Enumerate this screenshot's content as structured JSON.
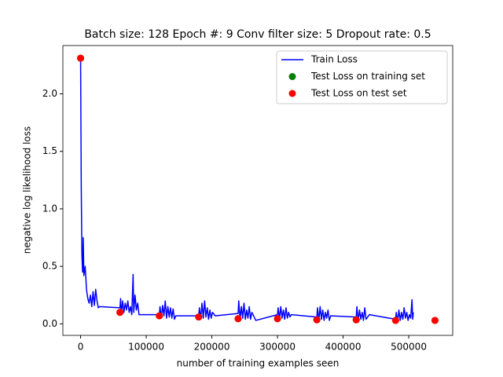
{
  "chart_data": {
    "type": "line",
    "title": "Batch size: 128 Epoch #: 9 Conv filter size: 5 Dropout rate: 0.5",
    "xlabel": "number of training examples seen",
    "ylabel": "negative log likelihood loss",
    "xlim": [
      -27000,
      567000
    ],
    "ylim": [
      -0.1,
      2.42
    ],
    "xticks": [
      0,
      100000,
      200000,
      300000,
      400000,
      500000
    ],
    "yticks": [
      {
        "value": 0,
        "label": "0.0"
      },
      {
        "value": 0.5,
        "label": "0.5"
      },
      {
        "value": 1,
        "label": "1.0"
      },
      {
        "value": 1.5,
        "label": "1.5"
      },
      {
        "value": 2,
        "label": "2.0"
      }
    ],
    "legend": "upper right",
    "series": [
      {
        "name": "Train Loss",
        "type": "line",
        "color": "#0000ff",
        "x": [
          0,
          1000,
          2000,
          3000,
          4000,
          5000,
          7000,
          9000,
          11000,
          13000,
          15000,
          17000,
          19000,
          21000,
          23000,
          25000,
          27000,
          29000,
          60000,
          61000,
          62000,
          64000,
          66000,
          68000,
          70000,
          72000,
          74000,
          76000,
          78000,
          80000,
          81000,
          83000,
          85000,
          87000,
          89000,
          120000,
          121000,
          123000,
          125000,
          127000,
          129000,
          131000,
          133000,
          135000,
          137000,
          139000,
          141000,
          143000,
          145000,
          180000,
          181000,
          183000,
          185000,
          187000,
          189000,
          191000,
          193000,
          195000,
          197000,
          199000,
          201000,
          205000,
          240000,
          241000,
          243000,
          245000,
          247000,
          249000,
          251000,
          253000,
          255000,
          257000,
          259000,
          261000,
          267000,
          300000,
          301000,
          303000,
          305000,
          307000,
          309000,
          311000,
          313000,
          315000,
          317000,
          319000,
          321000,
          360000,
          361000,
          363000,
          365000,
          367000,
          369000,
          371000,
          373000,
          375000,
          377000,
          379000,
          381000,
          420000,
          421000,
          423000,
          425000,
          427000,
          429000,
          431000,
          433000,
          435000,
          440000,
          480000,
          481000,
          483000,
          485000,
          487000,
          489000,
          491000,
          493000,
          495000,
          497000,
          499000,
          501000,
          503000,
          505000,
          506000,
          507000
        ],
        "values": [
          2.31,
          1.2,
          0.6,
          0.45,
          0.75,
          0.42,
          0.5,
          0.3,
          0.22,
          0.18,
          0.25,
          0.15,
          0.28,
          0.16,
          0.3,
          0.2,
          0.14,
          0.15,
          0.14,
          0.22,
          0.08,
          0.2,
          0.1,
          0.18,
          0.12,
          0.2,
          0.1,
          0.15,
          0.08,
          0.43,
          0.1,
          0.25,
          0.12,
          0.18,
          0.08,
          0.08,
          0.15,
          0.05,
          0.16,
          0.07,
          0.2,
          0.05,
          0.15,
          0.06,
          0.14,
          0.05,
          0.13,
          0.04,
          0.07,
          0.07,
          0.14,
          0.04,
          0.18,
          0.05,
          0.2,
          0.06,
          0.14,
          0.04,
          0.12,
          0.05,
          0.1,
          0.07,
          0.09,
          0.2,
          0.04,
          0.15,
          0.05,
          0.18,
          0.04,
          0.12,
          0.05,
          0.15,
          0.04,
          0.1,
          0.03,
          0.08,
          0.14,
          0.04,
          0.15,
          0.05,
          0.12,
          0.04,
          0.14,
          0.05,
          0.1,
          0.06,
          0.08,
          0.06,
          0.14,
          0.03,
          0.15,
          0.04,
          0.12,
          0.03,
          0.1,
          0.05,
          0.12,
          0.03,
          0.07,
          0.06,
          0.15,
          0.03,
          0.12,
          0.04,
          0.1,
          0.03,
          0.14,
          0.04,
          0.08,
          0.04,
          0.1,
          0.02,
          0.12,
          0.03,
          0.1,
          0.04,
          0.14,
          0.05,
          0.1,
          0.03,
          0.08,
          0.05,
          0.21,
          0.04,
          0.1
        ]
      },
      {
        "name": "Test Loss on training set",
        "type": "scatter",
        "color": "#008000",
        "x": [
          0,
          60000,
          120000,
          180000,
          240000,
          300000,
          360000,
          420000,
          480000,
          540000
        ],
        "values": [
          2.31,
          0.1,
          0.07,
          0.06,
          0.045,
          0.045,
          0.035,
          0.035,
          0.03,
          0.03
        ]
      },
      {
        "name": "Test Loss on test set",
        "type": "scatter",
        "color": "#ff0000",
        "x": [
          0,
          60000,
          120000,
          180000,
          240000,
          300000,
          360000,
          420000,
          480000,
          540000
        ],
        "values": [
          2.31,
          0.1,
          0.07,
          0.06,
          0.045,
          0.045,
          0.035,
          0.035,
          0.03,
          0.03
        ]
      }
    ]
  }
}
